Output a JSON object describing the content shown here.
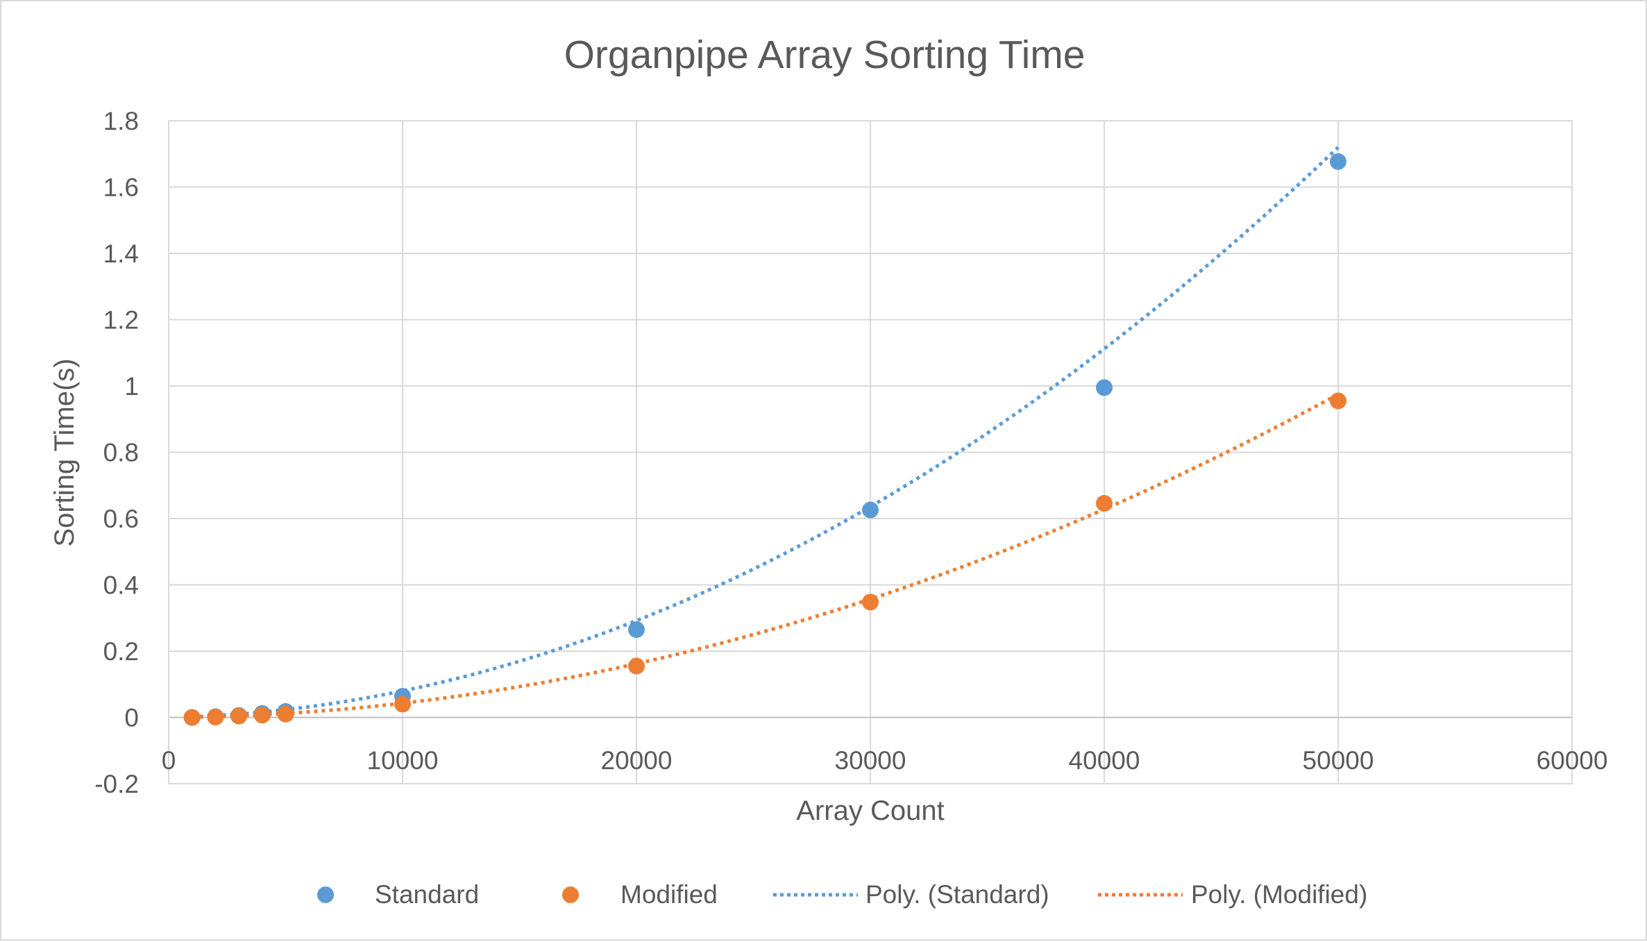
{
  "chart_data": {
    "type": "scatter",
    "title": "Organpipe Array Sorting Time",
    "xlabel": "Array Count",
    "ylabel": "Sorting Time(s)",
    "xlim": [
      0,
      60000
    ],
    "ylim": [
      -0.2,
      1.8
    ],
    "x_ticks": [
      "0",
      "10000",
      "20000",
      "30000",
      "40000",
      "50000",
      "60000"
    ],
    "y_ticks": [
      "-0.2",
      "0",
      "0.2",
      "0.4",
      "0.6",
      "0.8",
      "1",
      "1.2",
      "1.4",
      "1.6",
      "1.8"
    ],
    "grid": true,
    "legend_position": "bottom",
    "series": [
      {
        "name": "Standard",
        "color": "#5b9bd5",
        "x": [
          1000,
          2000,
          3000,
          4000,
          5000,
          10000,
          20000,
          30000,
          40000,
          50000
        ],
        "y": [
          0.0,
          0.002,
          0.006,
          0.012,
          0.018,
          0.064,
          0.265,
          0.626,
          0.995,
          1.677
        ]
      },
      {
        "name": "Modified",
        "color": "#ed7d31",
        "x": [
          1000,
          2000,
          3000,
          4000,
          5000,
          10000,
          20000,
          30000,
          40000,
          50000
        ],
        "y": [
          0.0,
          0.001,
          0.004,
          0.007,
          0.01,
          0.04,
          0.155,
          0.348,
          0.646,
          0.955
        ]
      }
    ],
    "trendlines": [
      {
        "name": "Poly. (Standard)",
        "type": "polynomial",
        "order": 2,
        "color": "#5b9bd5",
        "coefficients": [
          6.6e-10,
          1.4e-06,
          0.0
        ]
      },
      {
        "name": "Poly. (Modified)",
        "type": "polynomial",
        "order": 2,
        "color": "#ed7d31",
        "coefficients": [
          3.8e-10,
          5e-07,
          0.0
        ]
      }
    ]
  }
}
